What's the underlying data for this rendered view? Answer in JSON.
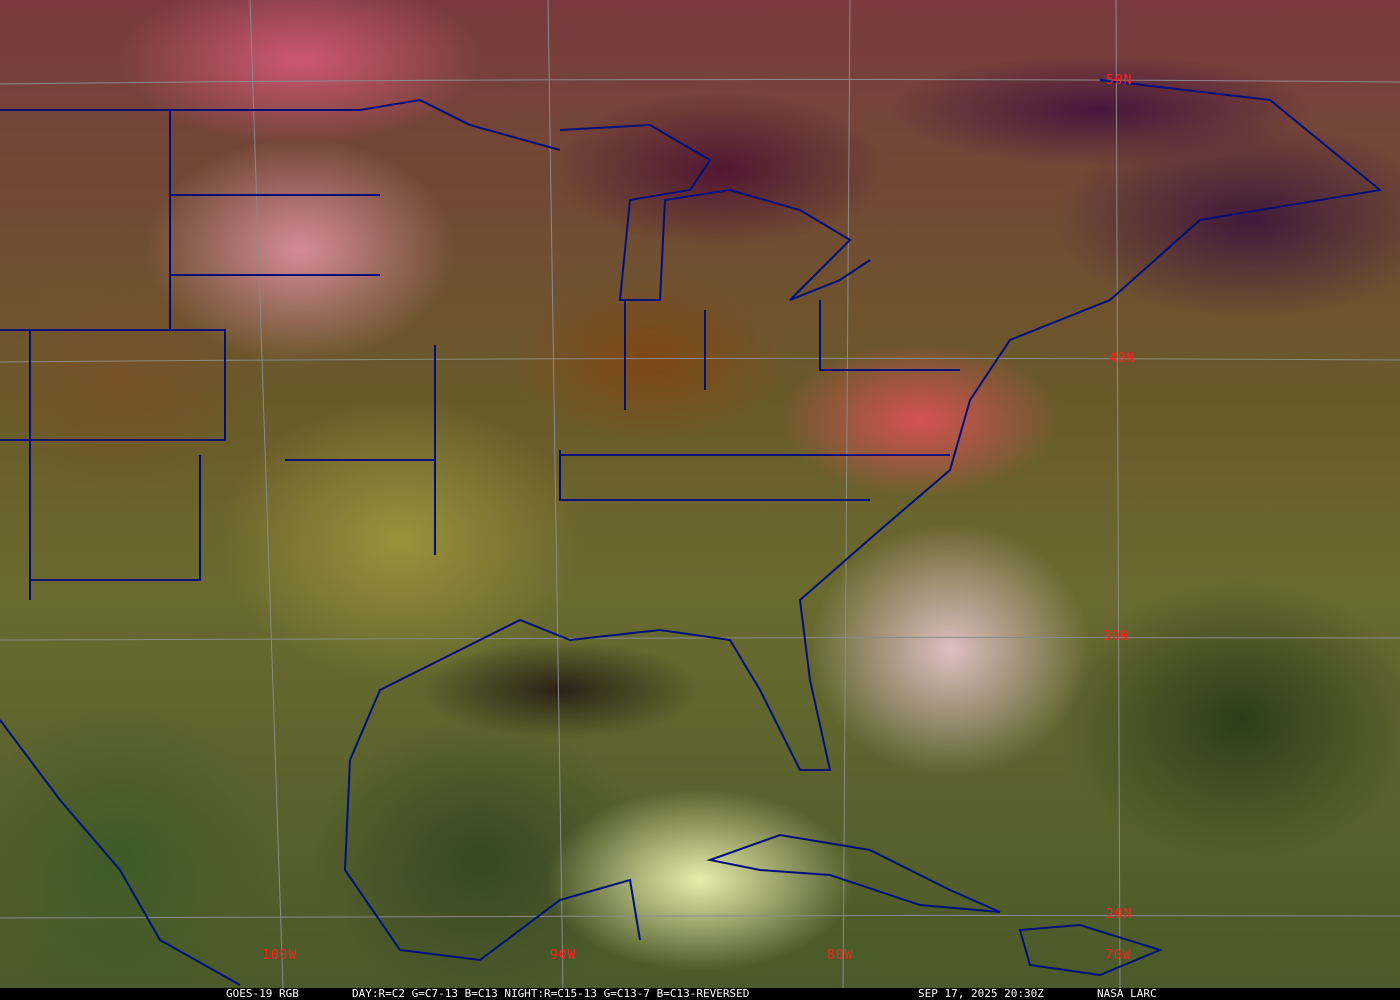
{
  "grid_labels": {
    "lat": [
      "50N",
      "40N",
      "30N",
      "20N"
    ],
    "lon": [
      "100W",
      "90W",
      "80W",
      "70W"
    ]
  },
  "caption": {
    "satellite": "GOES-19 RGB",
    "recipe": "DAY:R=C2 G=C7-13 B=C13 NIGHT:R=C15-13 G=C13-7 B=C13-REVERSED",
    "datetime": "SEP 17, 2025 20:30Z",
    "source": "NASA LARC"
  },
  "colors": {
    "coastline": "#00107a",
    "grid": "#8a8a8a",
    "grid_label": "#ff2020"
  }
}
